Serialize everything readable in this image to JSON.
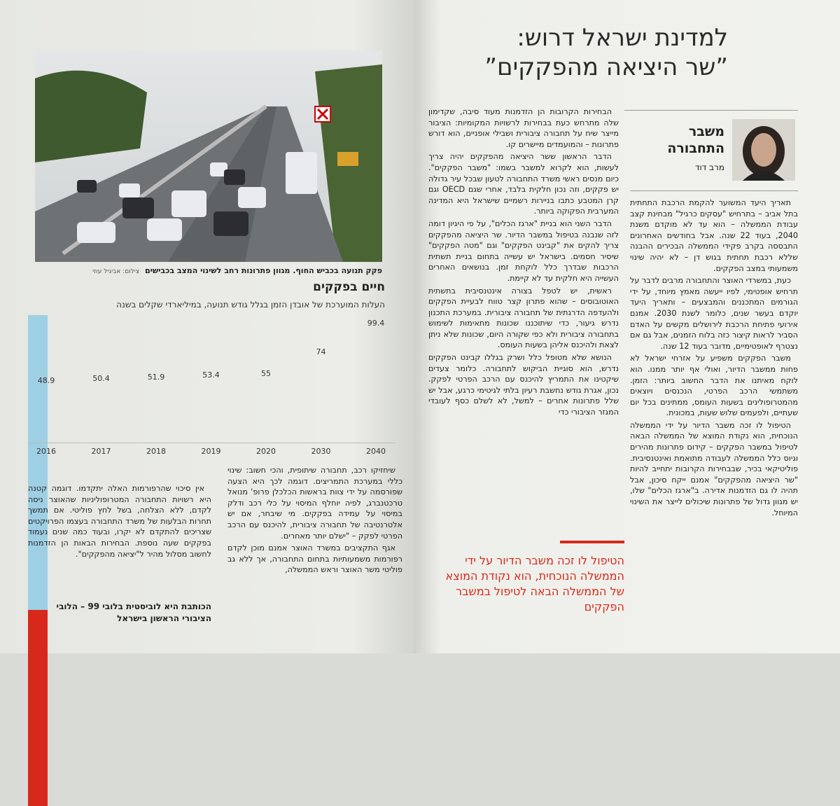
{
  "header": {
    "headline": [
      "למדינת ישראל דרוש:",
      "”שר היציאה מהפקקים”"
    ],
    "section": "משבר התחבורה",
    "author": "מרב דוד"
  },
  "photo": {
    "caption": "פקק תנועה בכביש החוף. מגוון פתרונות רחב לשינוי המצב בכבישים",
    "credit": "צילום: אביגיל עוזי"
  },
  "chart_data": {
    "type": "bar",
    "title": "חיים בפקקים",
    "subtitle": "העלות המוערכת של אובדן הזמן בגלל גודש תנועה, במיליארדי שקלים בשנה",
    "categories": [
      "2016",
      "2017",
      "2018",
      "2019",
      "2020",
      "2030",
      "2040"
    ],
    "values": [
      48.9,
      50.4,
      51.9,
      53.4,
      55,
      74,
      99.4
    ],
    "colors": [
      "#9fcfe4",
      "#9fcfe4",
      "#9fcfe4",
      "#9fcfe4",
      "#9fcfe4",
      "#d8281c",
      "#d8281c"
    ]
  },
  "body": {
    "right_column": [
      "תאריך היעד המשוער להקמת הרכבת התחתית בתל אביב – בתרחיש \"עסקים כרגיל\" מבחינת קצב עבודת הממשלה – הוא עד לא מוקדם משנת 2040, בעוד 22 שנה. אבל בחודשים האחרונים התבססה בקרב פקידי הממשלה הבכירים ההבנה שללא רכבת תחתית בגוש דן – לא יהיה שינוי משמעותי במצב הפקקים.",
      "כעת, במשרדי האוצר והתחבורה מרבים לדבר על תרחיש אופטימי, לפיו ייעשה מאמץ מיוחד, על ידי הגורמים המתכננים והמבצעים – ותאריך היעד יוקדם בעשר שנים, כלומר לשנת 2030. אמנם אירועי פתיחת הרכבת לירושלים מקשים על האדם הסביר לראות קיצור כזה בלוח הזמנים, אבל גם אם נצטרף לאופטימיים, מדובר בעוד 12 שנה.",
      "משבר הפקקים משפיע על אזרחי ישראל לא פחות ממשבר הדיור, ואולי אף יותר ממנו. הוא לוקח מאיתנו את הדבר החשוב ביותר: הזמן. משתמשי הרכב הפרטי, הנכנסים ויוצאים מהמטרופולינים בשעות העומס, ממתינים בכל יום שעתיים, ולפעמים שלוש שעות, במכונית.",
      "הטיפול לו זכה משבר הדיור על ידי הממשלה הנוכחית, הוא נקודת המוצא של הממשלה הבאה לטיפול במשבר הפקקים – קידום פתרונות מהירים וגיוס כלל הממשלה לעבודה מתואמת ואינטנסיבית. פוליטיקאי בכיר, שבבחירות הקרובות יתחייב להיות \"שר היציאה מהפקקים\" אמנם ייקח סיכון, אבל תהיה לו גם הזדמנות אדירה. ב\"ארגז הכלים\" שלו, יש מגוון גדול של פתרונות שיכולים לייצר את השינוי המיוחל."
    ],
    "middle_column": [
      "הבחירות הקרובות הן הזדמנות מעוד סיבה, שקדימון שלה מתרחש כעת בבחירות לרשויות המקומיות: הציבור מייצר שיח על תחבורה ציבורית ושבילי אופניים, הוא דורש פתרונות – והמועמדים מיישרים קו.",
      "הדבר הראשון ששר היציאה מהפקקים יהיה צריך לעשות, הוא לקרוא למשבר בשמו: \"משבר הפקקים\". כיום מנסים ראשי משרד התחבורה לטעון שבכל עיר גדולה יש פקקים, וזה נכון חלקית בלבד, אחרי שגם OECD וגם קרן המטבע כתבו בניירות רשמיים שישראל היא המדינה המערבית הפקוקה ביותר.",
      "הדבר השני הוא בניית \"ארגז הכלים\", על פי היגיון דומה לזה שנבנה בטיפול במשבר הדיור. שר היציאה מהפקקים צריך להקים את \"קבינט הפקקים\" וגם \"מטה הפקקים\" שיסיר חסמים. בישראל יש עשייה בתחום בניית תשתית הרכבות שבדרך כלל לוקחת זמן. בנושאים האחרים העשייה היא חלקית עד לא קיימת.",
      "ראשית, יש לטפל בצורה אינטנסיבית בתשתית האוטובוסים – שהוא פתרון קצר טווח לבעיית הפקקים ולהעדפה הדרגתית של תחבורה ציבורית. במערכת התכנון נדרש גיעור, כדי שיתוכננו שכונות מתאימות לשימוש בתחבורה ציבורית ולא כפי שקורה היום, שכונות שלא ניתן לצאת ולהיכנס אליהן בשעות העומס.",
      "הנושא שלא מטופל כלל ושרק בגללו קבינט הפקקים נדרש, הוא סוגיית הביקוש לתחבורה. כלומר צעדים שיקטינו את התמריץ להיכנס עם הרכב הפרטי לפקק. נכון, אגרת גודש נחשבת רעיון בלתי לגיטימי כרגע, אבל יש שלל פתרונות אחרים – למשל, לא לשלם כסף לעובדי המגזר הציבורי כדי"
    ],
    "pull_quote": "הטיפול לו זכה משבר הדיור על ידי הממשלה הנוכחית, הוא נקודת המוצא של הממשלה הבאה לטיפול במשבר הפקקים",
    "left_column_a": [
      "שיחזיקו רכב, תחבורה שיתופית, והכי חשוב: שינוי כללי במערכת התמריצים. דוגמה לכך היא הצעה שפורסמה על ידי צוות בראשות הכלכלן פרופ' מנואל טרכטנברג, לפיה יוחלף המיסוי על כלי רכב ודלק במיסוי על עמידה בפקקים. מי שיבחר, אם יש אלטרנטיבה של תחבורה ציבורית, להיכנס עם הרכב הפרטי לפקק – \"ישלם יותר מאחרים.",
      "אגף התקציבים במשרד האוצר אמנם מוכן לקדם רפורמות משמעותיות בתחום התחבורה, אך ללא גב פוליטי משר האוצר וראש הממשלה,"
    ],
    "left_column_b": [
      "אין סיכוי שהרפורמות האלה יתקדמו. דוגמה קטנה היא רשויות התחבורה המטרופוליניות שהאוצר ניסה לקדם, ללא הצלחה, בשל לחץ פוליטי. אם תמשך תחרות הבלעות של משרד התחבורה בעצמו הפרויקטים שצריכים להתקדם לא יקרו, ובעוד כמה שנים נעמוד בפקקים שעה נוספת. הבחירות הבאות הן הזדמנות לחשוב מסלול מהיר ל\"יציאה מהפקקים\"."
    ],
    "bio": "הכותבת היא לוביסטית בלובי 99 – הלובי הציבורי הראשון בישראל"
  }
}
